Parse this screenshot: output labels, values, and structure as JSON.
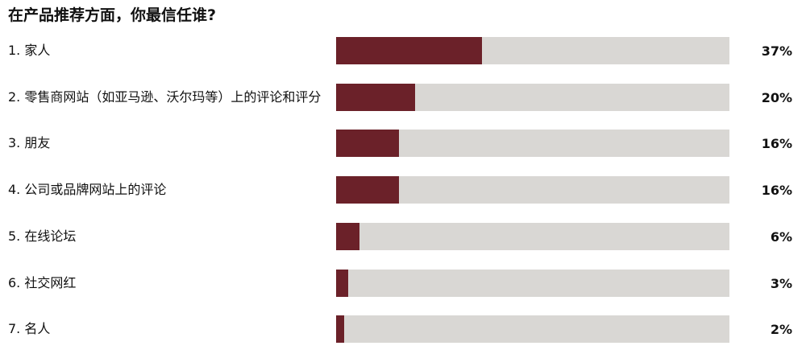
{
  "chart_data": {
    "type": "bar",
    "orientation": "horizontal",
    "title": "在产品推荐方面，你最信任谁?",
    "categories": [
      "1. 家人",
      "2.  零售商网站（如亚马逊、沃尔玛等）上的评论和评分",
      "3.  朋友",
      "4. 公司或品牌网站上的评论",
      "5. 在线论坛",
      "6. 社交网红",
      "7. 名人"
    ],
    "values": [
      37,
      20,
      16,
      16,
      6,
      3,
      2
    ],
    "value_labels": [
      "37%",
      "20%",
      "16%",
      "16%",
      "6%",
      "3%",
      "2%"
    ],
    "color": "#6b2129",
    "track_color": "#d9d7d4",
    "xlim": [
      0,
      100
    ],
    "grid": false
  }
}
